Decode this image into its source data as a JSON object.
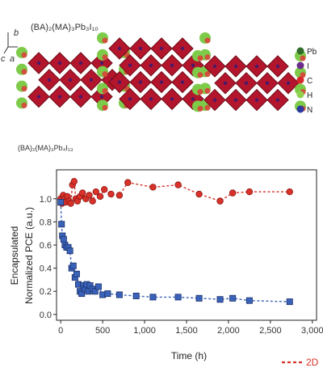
{
  "structure": {
    "axes_labels": [
      "b",
      "c",
      "a"
    ],
    "formula_top": "(BA)₂(MA)₃Pb₃I₁₀",
    "formula_bottom": "(BA)₂(MA)₃Pb₄I₁₃",
    "legend": [
      {
        "label": "Pb",
        "color": "#2f6b2a"
      },
      {
        "label": "I",
        "color": "#6a2b8a"
      },
      {
        "label": "C",
        "color": "#d62a2a"
      },
      {
        "label": "H",
        "color": "#8fd14f"
      },
      {
        "label": "N",
        "color": "#2a3aa0"
      }
    ],
    "colors": {
      "octahedron": "#b3162c",
      "octahedron_dark": "#6d0b18",
      "organic": "#7ecb4a",
      "organic_red": "#d9423a"
    }
  },
  "chart_data": {
    "type": "scatter",
    "xlabel": "Time (h)",
    "ylabel": "Normalized PCE (a.u.)",
    "ylabel_extra": "Encapsulated",
    "xlim": [
      -50,
      3050
    ],
    "ylim": [
      -0.05,
      1.25
    ],
    "xticks": [
      0,
      500,
      1000,
      1500,
      2000,
      2500,
      3000
    ],
    "xtick_labels": [
      "0",
      "500",
      "1,000",
      "1,500",
      "2,000",
      "2,500",
      "3,000"
    ],
    "yticks": [
      0.0,
      0.2,
      0.4,
      0.6,
      0.8,
      1.0
    ],
    "ytick_labels": [
      "0.0",
      "0.2",
      "0.4",
      "0.6",
      "0.8",
      "1.0"
    ],
    "legend_text": "2D",
    "series": [
      {
        "marker": "circle",
        "color": "#d8322a",
        "edge": "#8a1510",
        "x": [
          0,
          15,
          30,
          45,
          60,
          80,
          100,
          120,
          140,
          160,
          180,
          200,
          230,
          260,
          300,
          340,
          380,
          420,
          470,
          520,
          600,
          700,
          800,
          1100,
          1400,
          1650,
          1900,
          2050,
          2250,
          2730
        ],
        "y": [
          1.0,
          0.96,
          1.03,
          1.0,
          0.97,
          1.02,
          0.98,
          0.96,
          1.12,
          1.15,
          1.0,
          0.98,
          1.02,
          1.05,
          1.0,
          1.03,
          0.98,
          1.06,
          1.02,
          1.08,
          1.04,
          1.03,
          1.14,
          1.1,
          1.12,
          1.04,
          0.98,
          1.05,
          1.06,
          1.06
        ]
      },
      {
        "marker": "square",
        "color": "#3a62b8",
        "edge": "#1d3370",
        "x": [
          0,
          10,
          20,
          35,
          50,
          70,
          90,
          110,
          130,
          150,
          170,
          190,
          210,
          230,
          250,
          270,
          290,
          310,
          330,
          350,
          380,
          410,
          450,
          500,
          560,
          700,
          900,
          1100,
          1400,
          1650,
          1900,
          2050,
          2250,
          2730
        ],
        "y": [
          0.97,
          0.78,
          0.68,
          0.65,
          0.6,
          0.58,
          0.58,
          0.55,
          0.4,
          0.42,
          0.32,
          0.35,
          0.26,
          0.2,
          0.18,
          0.25,
          0.22,
          0.26,
          0.2,
          0.25,
          0.22,
          0.2,
          0.24,
          0.17,
          0.18,
          0.17,
          0.16,
          0.15,
          0.15,
          0.14,
          0.13,
          0.14,
          0.12,
          0.11
        ]
      }
    ]
  }
}
